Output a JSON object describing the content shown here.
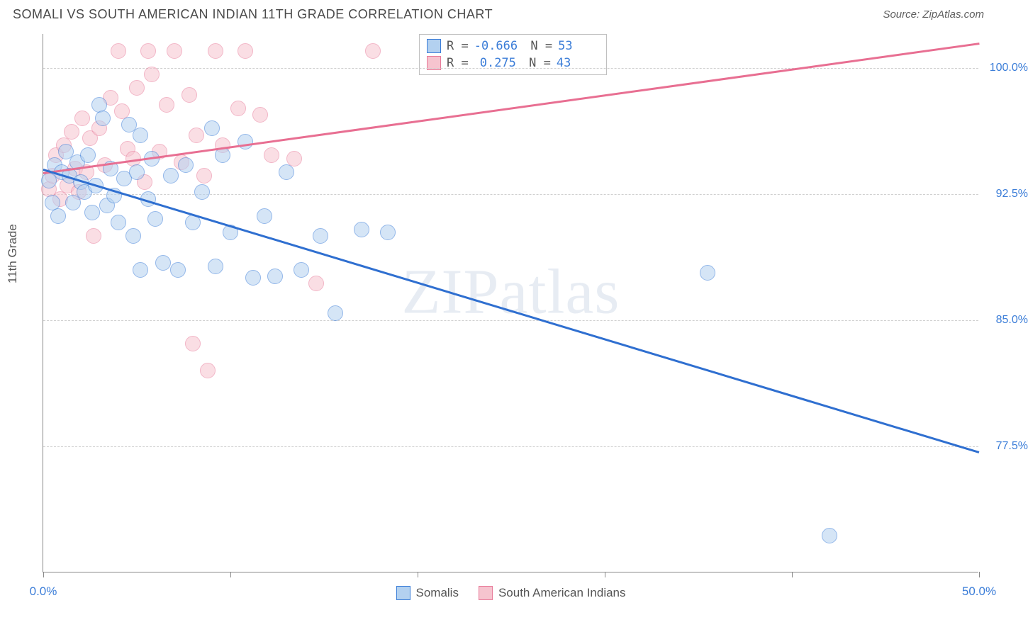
{
  "title": "SOMALI VS SOUTH AMERICAN INDIAN 11TH GRADE CORRELATION CHART",
  "source_label": "Source: ZipAtlas.com",
  "y_axis_label": "11th Grade",
  "watermark": "ZIPatlas",
  "colors": {
    "series_blue_fill": "#b3d1f0",
    "series_blue_stroke": "#3b7dd8",
    "series_pink_fill": "#f6c4cf",
    "series_pink_stroke": "#e87b9a",
    "axis_text": "#3b7dd8",
    "grid": "#d0d0d0",
    "trend_blue": "#2f6fd0",
    "trend_pink": "#e86f92"
  },
  "chart": {
    "type": "scatter",
    "xlim": [
      0,
      50
    ],
    "ylim": [
      70,
      102
    ],
    "x_ticks": [
      0,
      10,
      20,
      30,
      40,
      50
    ],
    "x_tick_labels": {
      "0": "0.0%",
      "50": "50.0%"
    },
    "y_gridlines": [
      77.5,
      85.0,
      92.5,
      100.0
    ],
    "y_tick_labels": [
      "77.5%",
      "85.0%",
      "92.5%",
      "100.0%"
    ],
    "marker_radius": 11,
    "marker_stroke_width": 1.5,
    "marker_opacity": 0.55
  },
  "legend": {
    "series1": "Somalis",
    "series2": "South American Indians"
  },
  "stats": {
    "series1": {
      "R": "-0.666",
      "N": "53"
    },
    "series2": {
      "R": "0.275",
      "N": "43"
    }
  },
  "trend_lines": {
    "blue": {
      "x1": 0,
      "y1": 94.0,
      "x2": 50,
      "y2": 77.2
    },
    "pink": {
      "x1": 0,
      "y1": 93.8,
      "x2": 50,
      "y2": 101.5
    }
  },
  "series_blue": [
    [
      0.3,
      93.3
    ],
    [
      0.5,
      92.0
    ],
    [
      0.6,
      94.2
    ],
    [
      0.8,
      91.2
    ],
    [
      1.0,
      93.8
    ],
    [
      1.2,
      95.0
    ],
    [
      1.4,
      93.6
    ],
    [
      1.6,
      92.0
    ],
    [
      1.8,
      94.4
    ],
    [
      2.0,
      93.2
    ],
    [
      2.2,
      92.6
    ],
    [
      2.4,
      94.8
    ],
    [
      2.6,
      91.4
    ],
    [
      2.8,
      93.0
    ],
    [
      3.0,
      97.8
    ],
    [
      3.2,
      97.0
    ],
    [
      3.4,
      91.8
    ],
    [
      3.6,
      94.0
    ],
    [
      3.8,
      92.4
    ],
    [
      4.0,
      90.8
    ],
    [
      4.3,
      93.4
    ],
    [
      4.6,
      96.6
    ],
    [
      4.8,
      90.0
    ],
    [
      5.0,
      93.8
    ],
    [
      5.2,
      96.0
    ],
    [
      5.2,
      88.0
    ],
    [
      5.6,
      92.2
    ],
    [
      5.8,
      94.6
    ],
    [
      6.0,
      91.0
    ],
    [
      6.4,
      88.4
    ],
    [
      6.8,
      93.6
    ],
    [
      7.2,
      88.0
    ],
    [
      7.6,
      94.2
    ],
    [
      8.0,
      90.8
    ],
    [
      8.5,
      92.6
    ],
    [
      9.0,
      96.4
    ],
    [
      9.2,
      88.2
    ],
    [
      9.6,
      94.8
    ],
    [
      10.0,
      90.2
    ],
    [
      10.8,
      95.6
    ],
    [
      11.2,
      87.5
    ],
    [
      11.8,
      91.2
    ],
    [
      12.4,
      87.6
    ],
    [
      13.0,
      93.8
    ],
    [
      13.8,
      88.0
    ],
    [
      14.8,
      90.0
    ],
    [
      15.6,
      85.4
    ],
    [
      17.0,
      90.4
    ],
    [
      18.4,
      90.2
    ],
    [
      35.5,
      87.8
    ],
    [
      42.0,
      72.2
    ]
  ],
  "series_pink": [
    [
      0.3,
      92.8
    ],
    [
      0.5,
      93.6
    ],
    [
      0.7,
      94.8
    ],
    [
      0.9,
      92.2
    ],
    [
      1.1,
      95.4
    ],
    [
      1.3,
      93.0
    ],
    [
      1.5,
      96.2
    ],
    [
      1.7,
      94.0
    ],
    [
      1.9,
      92.6
    ],
    [
      2.1,
      97.0
    ],
    [
      2.3,
      93.8
    ],
    [
      2.5,
      95.8
    ],
    [
      2.7,
      90.0
    ],
    [
      3.0,
      96.4
    ],
    [
      3.3,
      94.2
    ],
    [
      3.6,
      98.2
    ],
    [
      4.0,
      101.0
    ],
    [
      4.2,
      97.4
    ],
    [
      4.5,
      95.2
    ],
    [
      4.8,
      94.6
    ],
    [
      5.0,
      98.8
    ],
    [
      5.4,
      93.2
    ],
    [
      5.8,
      99.6
    ],
    [
      5.6,
      101.0
    ],
    [
      6.2,
      95.0
    ],
    [
      6.6,
      97.8
    ],
    [
      7.0,
      101.0
    ],
    [
      7.4,
      94.4
    ],
    [
      7.8,
      98.4
    ],
    [
      8.0,
      83.6
    ],
    [
      8.2,
      96.0
    ],
    [
      8.6,
      93.6
    ],
    [
      8.8,
      82.0
    ],
    [
      9.2,
      101.0
    ],
    [
      9.6,
      95.4
    ],
    [
      10.4,
      97.6
    ],
    [
      10.8,
      101.0
    ],
    [
      11.6,
      97.2
    ],
    [
      12.2,
      94.8
    ],
    [
      13.4,
      94.6
    ],
    [
      14.6,
      87.2
    ],
    [
      17.6,
      101.0
    ]
  ]
}
